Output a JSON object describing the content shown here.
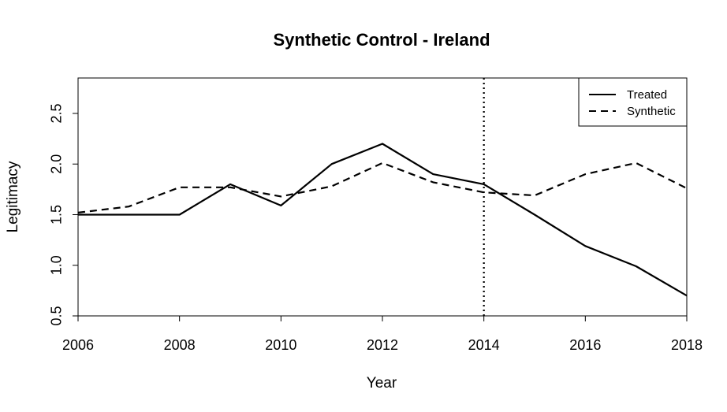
{
  "chart_data": {
    "type": "line",
    "title": "Synthetic Control - Ireland",
    "xlabel": "Year",
    "ylabel": "Legitimacy",
    "xlim": [
      2006,
      2018
    ],
    "ylim": [
      0.5,
      2.85
    ],
    "xticks": [
      2006,
      2008,
      2010,
      2012,
      2014,
      2016,
      2018
    ],
    "yticks": [
      0.5,
      1.0,
      1.5,
      2.0,
      2.5
    ],
    "x": [
      2006,
      2007,
      2008,
      2009,
      2010,
      2011,
      2012,
      2013,
      2014,
      2015,
      2016,
      2017,
      2018
    ],
    "series": [
      {
        "name": "Treated",
        "style": "solid",
        "color": "#000000",
        "values": [
          1.5,
          1.5,
          1.5,
          1.8,
          1.59,
          2.0,
          2.2,
          1.9,
          1.8,
          1.5,
          1.19,
          0.99,
          0.7
        ]
      },
      {
        "name": "Synthetic",
        "style": "dashed",
        "color": "#000000",
        "values": [
          1.52,
          1.58,
          1.77,
          1.77,
          1.68,
          1.78,
          2.01,
          1.82,
          1.72,
          1.69,
          1.9,
          2.01,
          1.76
        ]
      }
    ],
    "vline": {
      "x": 2014,
      "style": "dotted"
    },
    "legend": {
      "position": "top-right",
      "entries": [
        "Treated",
        "Synthetic"
      ]
    },
    "grid": false
  }
}
